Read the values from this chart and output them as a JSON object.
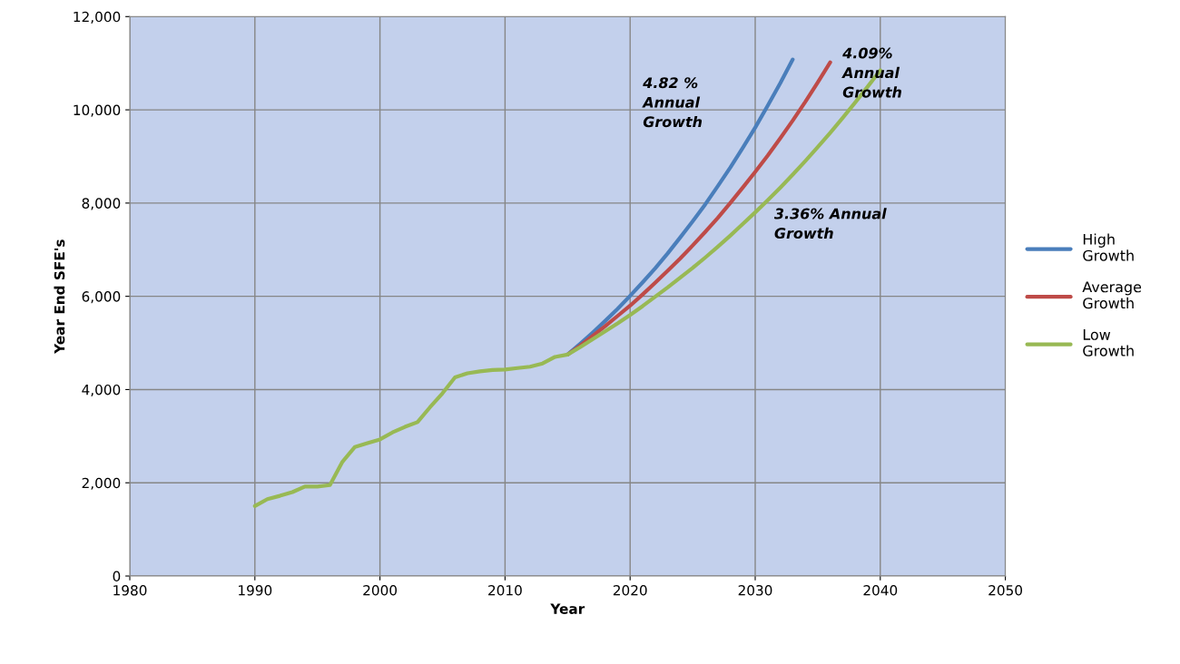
{
  "chart_data": {
    "type": "line",
    "xlabel": "Year",
    "ylabel": "Year End SFE's",
    "xlim": [
      1980,
      2050
    ],
    "xticks": [
      1980,
      1990,
      2000,
      2010,
      2020,
      2030,
      2040,
      2050
    ],
    "ylim": [
      0,
      12000
    ],
    "yticks": [
      {
        "value": 0,
        "label": "0"
      },
      {
        "value": 2000,
        "label": "2,000"
      },
      {
        "value": 4000,
        "label": "4,000"
      },
      {
        "value": 6000,
        "label": "6,000"
      },
      {
        "value": 8000,
        "label": "8,000"
      },
      {
        "value": 10000,
        "label": "10,000"
      },
      {
        "value": 12000,
        "label": "12,000"
      }
    ],
    "grid": true,
    "legend": "right",
    "marker": "none",
    "line_style": "solid",
    "series": [
      {
        "name": "High Growth",
        "color": "#4a7ebb",
        "x": [
          2015,
          2016,
          2017,
          2018,
          2019,
          2020,
          2021,
          2022,
          2023,
          2024,
          2025,
          2026,
          2027,
          2028,
          2029,
          2030,
          2031,
          2032,
          2033
        ],
        "values": [
          4750,
          4980,
          5220,
          5470,
          5730,
          6010,
          6300,
          6600,
          6920,
          7260,
          7610,
          7970,
          8360,
          8760,
          9180,
          9620,
          10090,
          10570,
          11080
        ]
      },
      {
        "name": "Average Growth",
        "color": "#be4b48",
        "x": [
          2015,
          2016,
          2017,
          2018,
          2019,
          2020,
          2021,
          2022,
          2023,
          2024,
          2025,
          2026,
          2027,
          2028,
          2029,
          2030,
          2031,
          2032,
          2033,
          2034,
          2035,
          2036
        ],
        "values": [
          4750,
          4940,
          5150,
          5360,
          5580,
          5800,
          6040,
          6290,
          6550,
          6810,
          7090,
          7380,
          7680,
          8000,
          8330,
          8670,
          9020,
          9390,
          9770,
          10170,
          10590,
          11020
        ]
      },
      {
        "name": "Low Growth",
        "color": "#98b954",
        "x": [
          1990,
          1991,
          1992,
          1993,
          1994,
          1995,
          1996,
          1997,
          1998,
          1999,
          2000,
          2001,
          2002,
          2003,
          2004,
          2005,
          2006,
          2007,
          2008,
          2009,
          2010,
          2011,
          2012,
          2013,
          2014,
          2015,
          2016,
          2017,
          2018,
          2019,
          2020,
          2021,
          2022,
          2023,
          2024,
          2025,
          2026,
          2027,
          2028,
          2029,
          2030,
          2031,
          2032,
          2033,
          2034,
          2035,
          2036,
          2037,
          2038,
          2039,
          2040
        ],
        "values": [
          1500,
          1650,
          1720,
          1800,
          1920,
          1920,
          1950,
          2450,
          2770,
          2850,
          2930,
          3080,
          3200,
          3300,
          3620,
          3920,
          4260,
          4350,
          4390,
          4420,
          4430,
          4460,
          4490,
          4560,
          4700,
          4750,
          4910,
          5080,
          5250,
          5420,
          5600,
          5790,
          5990,
          6190,
          6400,
          6610,
          6830,
          7060,
          7300,
          7550,
          7800,
          8060,
          8330,
          8610,
          8900,
          9200,
          9510,
          9830,
          10160,
          10500,
          10850
        ]
      }
    ],
    "annotations": [
      "4.82 %\nAnnual\nGrowth",
      "4.09%\nAnnual\nGrowth",
      "3.36% Annual\nGrowth"
    ]
  }
}
